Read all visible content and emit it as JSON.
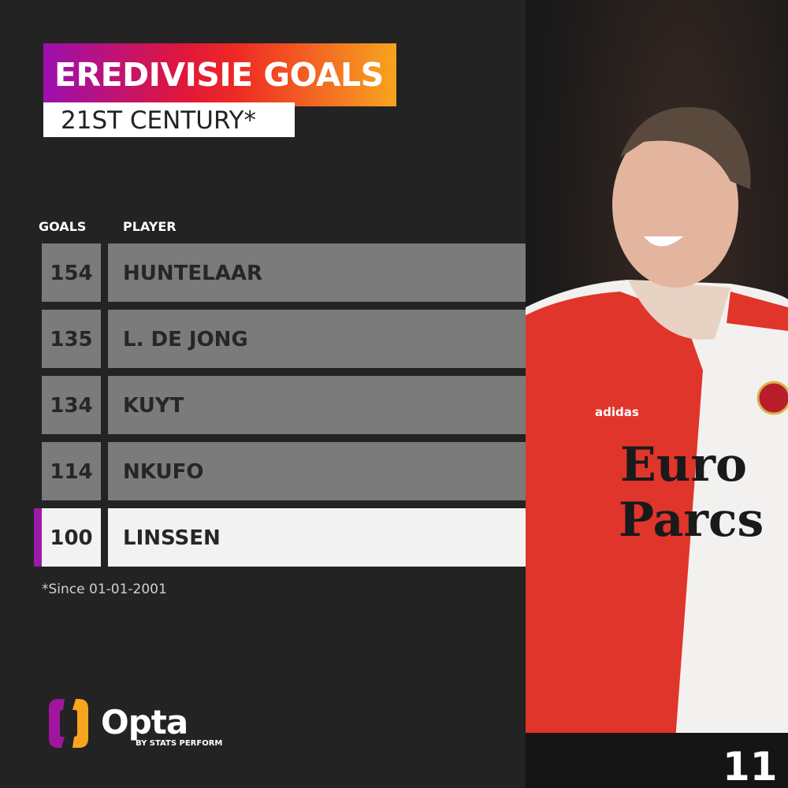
{
  "title": "EREDIVISIE GOALS",
  "subtitle": "21ST CENTURY*",
  "headers": {
    "goals": "GOALS",
    "player": "PLAYER"
  },
  "rows": [
    {
      "goals": "154",
      "player": "HUNTELAAR"
    },
    {
      "goals": "135",
      "player": "L. DE JONG"
    },
    {
      "goals": "134",
      "player": "KUYT"
    },
    {
      "goals": "114",
      "player": "NKUFO"
    },
    {
      "goals": "100",
      "player": "LINSSEN",
      "highlighted": true
    }
  ],
  "footnote": "*Since 01-01-2001",
  "brand": {
    "name": "Opta",
    "tagline": "BY STATS PERFORM"
  },
  "photo": {
    "sponsor": "Euro Parcs",
    "kit_brand": "adidas",
    "shirt_number": "11"
  },
  "colors": {
    "background": "#232323",
    "row": "#7b7b7b",
    "highlight": "#f2f2f2",
    "accent": "#9c1aa8",
    "gradient_start": "#9c0fb0",
    "gradient_end": "#f7a51f"
  }
}
